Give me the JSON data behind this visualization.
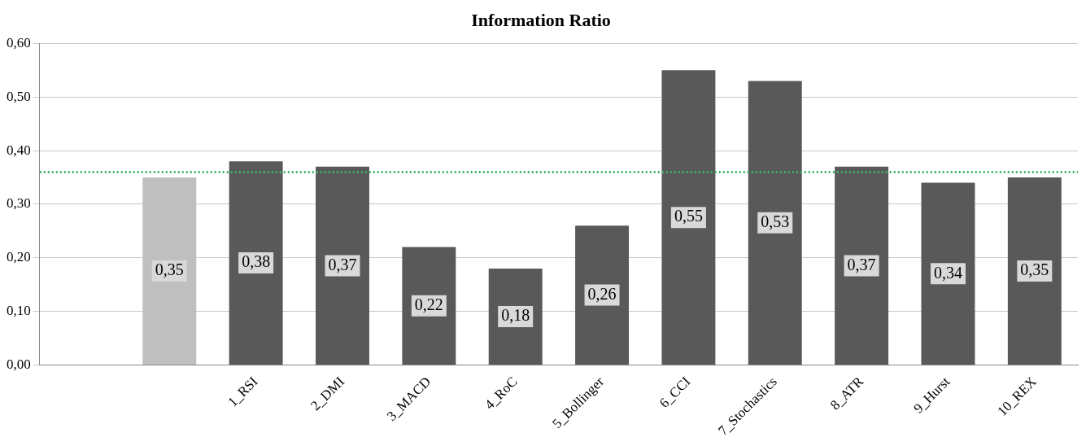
{
  "chart_data": {
    "type": "bar",
    "title": "Information Ratio",
    "categories": [
      null,
      null,
      "1_RSI",
      "2_DMI",
      "3_MACD",
      "4_RoC",
      "5_Bollinger",
      "6_CCI",
      "7_Stochastics",
      "8_ATR",
      "9_Hurst",
      "10_REX"
    ],
    "values": [
      null,
      0.35,
      0.38,
      0.37,
      0.22,
      0.18,
      0.26,
      0.55,
      0.53,
      0.37,
      0.34,
      0.35
    ],
    "colors": [
      "#595959",
      "#bfbfbf",
      "#595959",
      "#595959",
      "#595959",
      "#595959",
      "#595959",
      "#595959",
      "#595959",
      "#595959",
      "#595959",
      "#595959"
    ],
    "value_labels": [
      null,
      "0,35",
      "0,38",
      "0,37",
      "0,22",
      "0,18",
      "0,26",
      "0,55",
      "0,53",
      "0,37",
      "0,34",
      "0,35"
    ],
    "ylim": [
      0,
      0.6
    ],
    "yticks": [
      {
        "value": 0,
        "label": "0,00"
      },
      {
        "value": 0.1,
        "label": "0,10"
      },
      {
        "value": 0.2,
        "label": "0,20"
      },
      {
        "value": 0.3,
        "label": "0,30"
      },
      {
        "value": 0.4,
        "label": "0,40"
      },
      {
        "value": 0.5,
        "label": "0,50"
      },
      {
        "value": 0.6,
        "label": "0,60"
      }
    ],
    "grid": "y",
    "legend": false,
    "ref_lines": [
      {
        "axis": "y",
        "value": 0.36,
        "color": "#3cb371",
        "line_style": "dotted"
      }
    ]
  }
}
